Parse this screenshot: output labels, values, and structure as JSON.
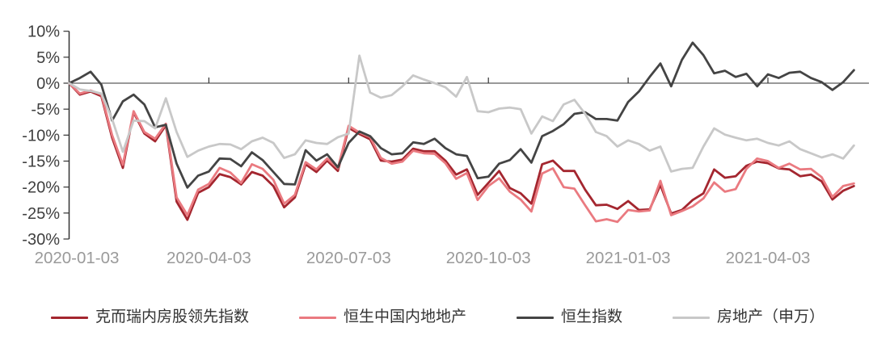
{
  "chart_data": {
    "type": "line",
    "title": "",
    "grid": false,
    "legend_position": "bottom",
    "x_axis": {
      "tick_labels": [
        "2020-01-03",
        "2020-04-03",
        "2020-07-03",
        "2020-10-03",
        "2021-01-03",
        "2021-04-03"
      ],
      "tick_weeks": [
        0,
        13,
        26,
        39,
        52,
        65
      ],
      "unit": "weekly points since 2020-01-03",
      "points_count": 74
    },
    "y_axis": {
      "tick_labels": [
        "10%",
        "5%",
        "0%",
        "-5%",
        "-10%",
        "-15%",
        "-20%",
        "-25%",
        "-30%"
      ],
      "tick_values": [
        10,
        5,
        0,
        -5,
        -10,
        -15,
        -20,
        -25,
        -30
      ],
      "range": [
        -30,
        10
      ],
      "format": "percent"
    },
    "colors": {
      "axis": "#333333",
      "y_label": "#404040",
      "x_label": "#9A9A9A",
      "legend_text": "#333333"
    },
    "series": [
      {
        "name": "克而瑞内房股领先指数",
        "color": "#A4262F",
        "values": [
          0,
          -2.2,
          -1.6,
          -2.5,
          -10.5,
          -16.3,
          -5.6,
          -9.7,
          -11.2,
          -8.1,
          -22.8,
          -26.3,
          -21.1,
          -20.0,
          -17.5,
          -18.1,
          -19.5,
          -17.1,
          -17.8,
          -19.8,
          -23.9,
          -22.0,
          -15.6,
          -17.1,
          -14.9,
          -16.9,
          -8.6,
          -9.8,
          -10.8,
          -14.9,
          -15.1,
          -14.7,
          -12.6,
          -13.1,
          -13.1,
          -14.9,
          -17.6,
          -16.6,
          -21.5,
          -19.2,
          -16.9,
          -20.2,
          -21.2,
          -23.2,
          -15.6,
          -14.9,
          -16.9,
          -16.9,
          -20.5,
          -23.5,
          -23.4,
          -24.2,
          -22.7,
          -24.4,
          -24.3,
          -19.6,
          -25.1,
          -24.4,
          -22.5,
          -21.2,
          -16.6,
          -18.2,
          -17.9,
          -15.9,
          -15.1,
          -15.4,
          -16.4,
          -16.6,
          -17.9,
          -17.6,
          -18.9,
          -22.4,
          -20.7,
          -19.8
        ]
      },
      {
        "name": "恒生中国内地地产",
        "color": "#EA7A80",
        "values": [
          0,
          -2.0,
          -1.4,
          -2.2,
          -10.0,
          -15.7,
          -5.4,
          -9.4,
          -10.7,
          -7.8,
          -22.0,
          -25.4,
          -20.5,
          -19.4,
          -16.3,
          -17.2,
          -19.2,
          -15.6,
          -16.5,
          -18.6,
          -23.2,
          -21.5,
          -15.2,
          -16.6,
          -14.5,
          -16.4,
          -8.2,
          -9.5,
          -10.4,
          -14.4,
          -15.5,
          -15.1,
          -13.0,
          -13.5,
          -13.6,
          -15.4,
          -18.4,
          -17.3,
          -22.5,
          -19.8,
          -18.3,
          -20.9,
          -22.4,
          -24.7,
          -17.4,
          -16.4,
          -20.0,
          -20.3,
          -23.5,
          -26.6,
          -26.2,
          -26.7,
          -24.4,
          -24.7,
          -24.5,
          -18.8,
          -25.4,
          -24.6,
          -23.7,
          -22.2,
          -19.1,
          -20.9,
          -20.4,
          -16.5,
          -14.5,
          -15.0,
          -16.3,
          -15.5,
          -16.6,
          -16.5,
          -18.1,
          -21.9,
          -19.8,
          -19.3
        ]
      },
      {
        "name": "恒生指数",
        "color": "#444444",
        "values": [
          0,
          1.0,
          2.2,
          -0.3,
          -7.2,
          -3.5,
          -2.2,
          -4.1,
          -8.5,
          -8.0,
          -15.5,
          -20.1,
          -17.8,
          -17.0,
          -14.5,
          -14.6,
          -16.0,
          -13.3,
          -14.8,
          -17.1,
          -19.4,
          -19.5,
          -12.9,
          -14.9,
          -13.7,
          -16.2,
          -11.5,
          -9.3,
          -10.2,
          -12.5,
          -13.7,
          -13.5,
          -11.4,
          -11.7,
          -10.7,
          -12.5,
          -13.7,
          -14.0,
          -18.3,
          -18.0,
          -15.5,
          -14.8,
          -12.7,
          -15.3,
          -10.2,
          -9.2,
          -7.9,
          -5.9,
          -5.6,
          -6.9,
          -6.9,
          -7.2,
          -3.6,
          -1.6,
          1.2,
          3.8,
          -0.6,
          4.5,
          7.8,
          5.4,
          1.9,
          2.4,
          1.2,
          1.8,
          -0.6,
          1.7,
          1.0,
          2.0,
          2.2,
          1.0,
          0.2,
          -1.3,
          0.2,
          2.5
        ]
      },
      {
        "name": "房地产（申万）",
        "color": "#C8C8C8",
        "values": [
          0,
          -1.2,
          -1.5,
          -2.0,
          -6.9,
          -13.2,
          -7.2,
          -7.3,
          -8.7,
          -2.9,
          -9.4,
          -14.2,
          -13.0,
          -12.2,
          -11.7,
          -11.8,
          -12.7,
          -11.2,
          -10.5,
          -11.5,
          -14.4,
          -13.7,
          -11.0,
          -11.5,
          -11.7,
          -10.4,
          -9.7,
          5.3,
          -1.8,
          -2.8,
          -2.3,
          -0.6,
          1.5,
          0.7,
          0.0,
          -0.8,
          -2.6,
          1.2,
          -5.4,
          -5.6,
          -4.9,
          -4.7,
          -5.0,
          -9.7,
          -6.4,
          -7.3,
          -4.1,
          -3.2,
          -5.9,
          -9.4,
          -10.2,
          -12.2,
          -11.0,
          -11.7,
          -13.0,
          -12.2,
          -17.0,
          -16.5,
          -16.3,
          -12.2,
          -8.7,
          -9.9,
          -10.5,
          -11.0,
          -10.7,
          -11.5,
          -12.0,
          -11.2,
          -12.7,
          -13.5,
          -14.3,
          -13.7,
          -14.5,
          -12.0
        ]
      }
    ]
  }
}
